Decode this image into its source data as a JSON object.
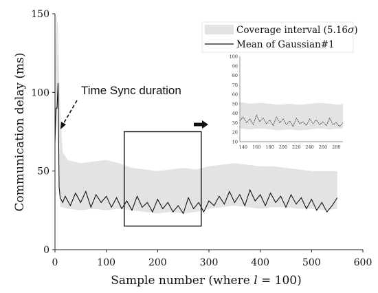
{
  "chart_data": {
    "type": "line",
    "xlabel": "Sample number (where l = 100)",
    "xlabel_parts": [
      "Sample number (where ",
      "l",
      " = 100)"
    ],
    "ylabel": "Communication delay (ms)",
    "xlim": [
      0,
      600
    ],
    "ylim": [
      0,
      150
    ],
    "x_ticks": [
      0,
      100,
      200,
      300,
      400,
      500,
      600
    ],
    "y_ticks": [
      0,
      50,
      100,
      150
    ],
    "legend_position": "top-right",
    "legend": [
      {
        "label": "Coverage interval (5.16σ)",
        "label_parts": [
          "Coverage interval (5.16",
          "σ",
          ")"
        ],
        "swatch": "#e3e3e3"
      },
      {
        "label": "Mean of Gaussian#1",
        "swatch": "#111111"
      }
    ],
    "annotations": [
      {
        "text": "Time Sync duration",
        "points_to_x": 5,
        "points_to_y": 72
      }
    ],
    "highlight_box": {
      "x": [
        135,
        285
      ],
      "y": [
        15,
        75
      ]
    },
    "series": [
      {
        "name": "Coverage interval (5.16σ)",
        "kind": "band",
        "color": "#e3e3e3",
        "x": [
          0,
          3,
          6,
          8,
          10,
          15,
          25,
          50,
          75,
          100,
          125,
          150,
          175,
          200,
          225,
          250,
          275,
          300,
          325,
          350,
          375,
          400,
          425,
          450,
          475,
          500,
          525,
          550
        ],
        "lower": [
          65,
          85,
          95,
          50,
          27,
          27,
          26,
          25,
          26,
          25,
          26,
          25,
          24,
          23,
          24,
          23,
          24,
          26,
          27,
          28,
          27,
          26,
          27,
          27,
          26,
          26,
          25,
          26
        ],
        "upper": [
          110,
          150,
          140,
          110,
          90,
          62,
          57,
          55,
          56,
          57,
          55,
          52,
          51,
          50,
          51,
          52,
          51,
          53,
          54,
          55,
          54,
          53,
          53,
          52,
          51,
          50,
          50,
          50
        ]
      },
      {
        "name": "Mean of Gaussian#1",
        "kind": "line",
        "color": "#111111",
        "x": [
          0,
          2,
          4,
          6,
          8,
          10,
          15,
          20,
          30,
          40,
          50,
          60,
          70,
          80,
          90,
          100,
          110,
          120,
          130,
          140,
          150,
          160,
          170,
          180,
          190,
          200,
          210,
          220,
          230,
          240,
          250,
          260,
          270,
          280,
          290,
          300,
          310,
          320,
          330,
          340,
          350,
          360,
          370,
          380,
          390,
          400,
          410,
          420,
          430,
          440,
          450,
          460,
          470,
          480,
          490,
          500,
          510,
          520,
          530,
          540,
          550
        ],
        "y": [
          68,
          90,
          90,
          106,
          40,
          33,
          30,
          34,
          28,
          36,
          30,
          37,
          27,
          35,
          30,
          34,
          27,
          33,
          26,
          31,
          25,
          34,
          27,
          30,
          24,
          32,
          26,
          30,
          24,
          28,
          23,
          33,
          26,
          30,
          24,
          31,
          28,
          34,
          29,
          37,
          30,
          35,
          28,
          38,
          31,
          35,
          28,
          36,
          30,
          34,
          27,
          35,
          29,
          33,
          26,
          32,
          25,
          30,
          24,
          28,
          33
        ]
      }
    ],
    "inset": {
      "xlim": [
        135,
        290
      ],
      "ylim": [
        10,
        100
      ],
      "x_ticks": [
        140,
        160,
        180,
        200,
        220,
        240,
        260,
        280
      ],
      "y_ticks": [
        10,
        20,
        30,
        40,
        50,
        60,
        70,
        80,
        90,
        100
      ],
      "band": {
        "x": [
          135,
          150,
          165,
          180,
          195,
          210,
          225,
          240,
          255,
          270,
          285,
          290
        ],
        "lower": [
          24,
          23,
          24,
          23,
          22,
          23,
          22,
          23,
          24,
          23,
          24,
          24
        ],
        "upper": [
          52,
          50,
          51,
          50,
          49,
          50,
          49,
          50,
          51,
          50,
          49,
          50
        ]
      },
      "line": {
        "x": [
          135,
          140,
          145,
          150,
          155,
          160,
          165,
          170,
          175,
          180,
          185,
          190,
          195,
          200,
          205,
          210,
          215,
          220,
          225,
          230,
          235,
          240,
          245,
          250,
          255,
          260,
          265,
          270,
          275,
          280,
          285,
          290
        ],
        "y": [
          32,
          36,
          30,
          34,
          28,
          38,
          31,
          35,
          29,
          33,
          27,
          36,
          30,
          34,
          28,
          32,
          26,
          35,
          29,
          31,
          27,
          34,
          29,
          33,
          28,
          31,
          27,
          35,
          28,
          30,
          26,
          30
        ]
      }
    }
  }
}
